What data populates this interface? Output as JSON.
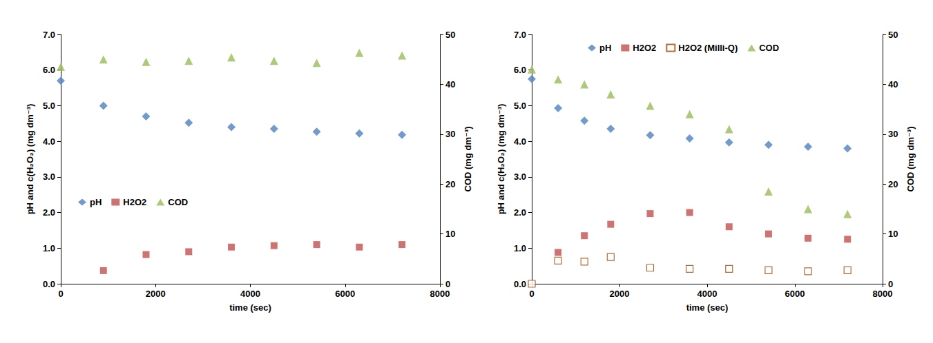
{
  "chart_data": [
    {
      "type": "scatter",
      "x_label": "time (sec)",
      "y_label": "pH and c(H₂O₂) (mg dm⁻³)",
      "y2_label": "COD (mg dm⁻³)",
      "xlim": [
        0,
        8000
      ],
      "xticks": [
        0,
        2000,
        4000,
        6000,
        8000
      ],
      "ylim": [
        0,
        7
      ],
      "yticks": [
        {
          "value": 0,
          "label": "0.0"
        },
        {
          "value": 1,
          "label": "1.0"
        },
        {
          "value": 2,
          "label": "2.0"
        },
        {
          "value": 3,
          "label": "3.0"
        },
        {
          "value": 4,
          "label": "4.0"
        },
        {
          "value": 5,
          "label": "5.0"
        },
        {
          "value": 6,
          "label": "6.0"
        },
        {
          "value": 7,
          "label": "7.0"
        }
      ],
      "y2lim": [
        0,
        50
      ],
      "y2ticks": [
        0,
        10,
        20,
        30,
        40,
        50
      ],
      "grid": false,
      "legend": "center left",
      "series": [
        {
          "name": "pH",
          "color": "#4f81bd",
          "marker": "diamond",
          "x": [
            0,
            900,
            1800,
            2700,
            3600,
            4500,
            5400,
            6300,
            7200
          ],
          "values": [
            5.7,
            5.0,
            4.7,
            4.52,
            4.4,
            4.35,
            4.27,
            4.22,
            4.18
          ]
        },
        {
          "name": "H2O2",
          "color": "#c0504d",
          "marker": "square",
          "x": [
            900,
            1800,
            2700,
            3600,
            4500,
            5400,
            6300,
            7200
          ],
          "values": [
            0.37,
            0.82,
            0.9,
            1.03,
            1.07,
            1.1,
            1.03,
            1.1
          ]
        },
        {
          "name": "COD",
          "color": "#9bbb59",
          "marker": "triangle",
          "axis": "y2",
          "x": [
            0,
            900,
            1800,
            2700,
            3600,
            4500,
            5400,
            6300,
            7200
          ],
          "values": [
            43.5,
            45,
            44.5,
            44.7,
            45.4,
            44.7,
            44.3,
            46.3,
            45.8
          ]
        }
      ]
    },
    {
      "type": "scatter",
      "x_label": "time (sec)",
      "y_label": "pH and c(H₂O₂) (mg dm⁻³)",
      "y2_label": "COD (mg dm⁻³)",
      "xlim": [
        0,
        8000
      ],
      "xticks": [
        0,
        2000,
        4000,
        6000,
        8000
      ],
      "ylim": [
        0,
        7
      ],
      "yticks": [
        {
          "value": 0,
          "label": "0.0"
        },
        {
          "value": 1,
          "label": "1.0"
        },
        {
          "value": 2,
          "label": "2.0"
        },
        {
          "value": 3,
          "label": "3.0"
        },
        {
          "value": 4,
          "label": "4.0"
        },
        {
          "value": 5,
          "label": "5.0"
        },
        {
          "value": 6,
          "label": "6.0"
        },
        {
          "value": 7,
          "label": "7.0"
        }
      ],
      "y2lim": [
        0,
        50
      ],
      "y2ticks": [
        0,
        10,
        20,
        30,
        40,
        50
      ],
      "grid": false,
      "legend": "upper center",
      "series": [
        {
          "name": "pH",
          "color": "#4f81bd",
          "marker": "diamond",
          "x": [
            0,
            600,
            1200,
            1800,
            2700,
            3600,
            4500,
            5400,
            6300,
            7200
          ],
          "values": [
            5.75,
            4.93,
            4.58,
            4.35,
            4.17,
            4.08,
            3.97,
            3.9,
            3.85,
            3.8
          ]
        },
        {
          "name": "H2O2",
          "color": "#c0504d",
          "marker": "square",
          "x": [
            600,
            1200,
            1800,
            2700,
            3600,
            4500,
            5400,
            6300,
            7200
          ],
          "values": [
            0.88,
            1.35,
            1.67,
            1.97,
            2.0,
            1.6,
            1.4,
            1.28,
            1.25
          ]
        },
        {
          "name": "H2O2 (Milli-Q)",
          "color": "#984807",
          "marker": "square-open",
          "x": [
            0,
            600,
            1200,
            1800,
            2700,
            3600,
            4500,
            5400,
            6300,
            7200
          ],
          "values": [
            0.0,
            0.65,
            0.62,
            0.75,
            0.45,
            0.42,
            0.42,
            0.38,
            0.35,
            0.38
          ]
        },
        {
          "name": "COD",
          "color": "#9bbb59",
          "marker": "triangle",
          "axis": "y2",
          "x": [
            0,
            600,
            1200,
            1800,
            2700,
            3600,
            4500,
            5400,
            6300,
            7200
          ],
          "values": [
            43,
            41,
            40,
            38,
            35.7,
            34,
            31,
            18.5,
            15,
            14
          ]
        }
      ]
    }
  ]
}
